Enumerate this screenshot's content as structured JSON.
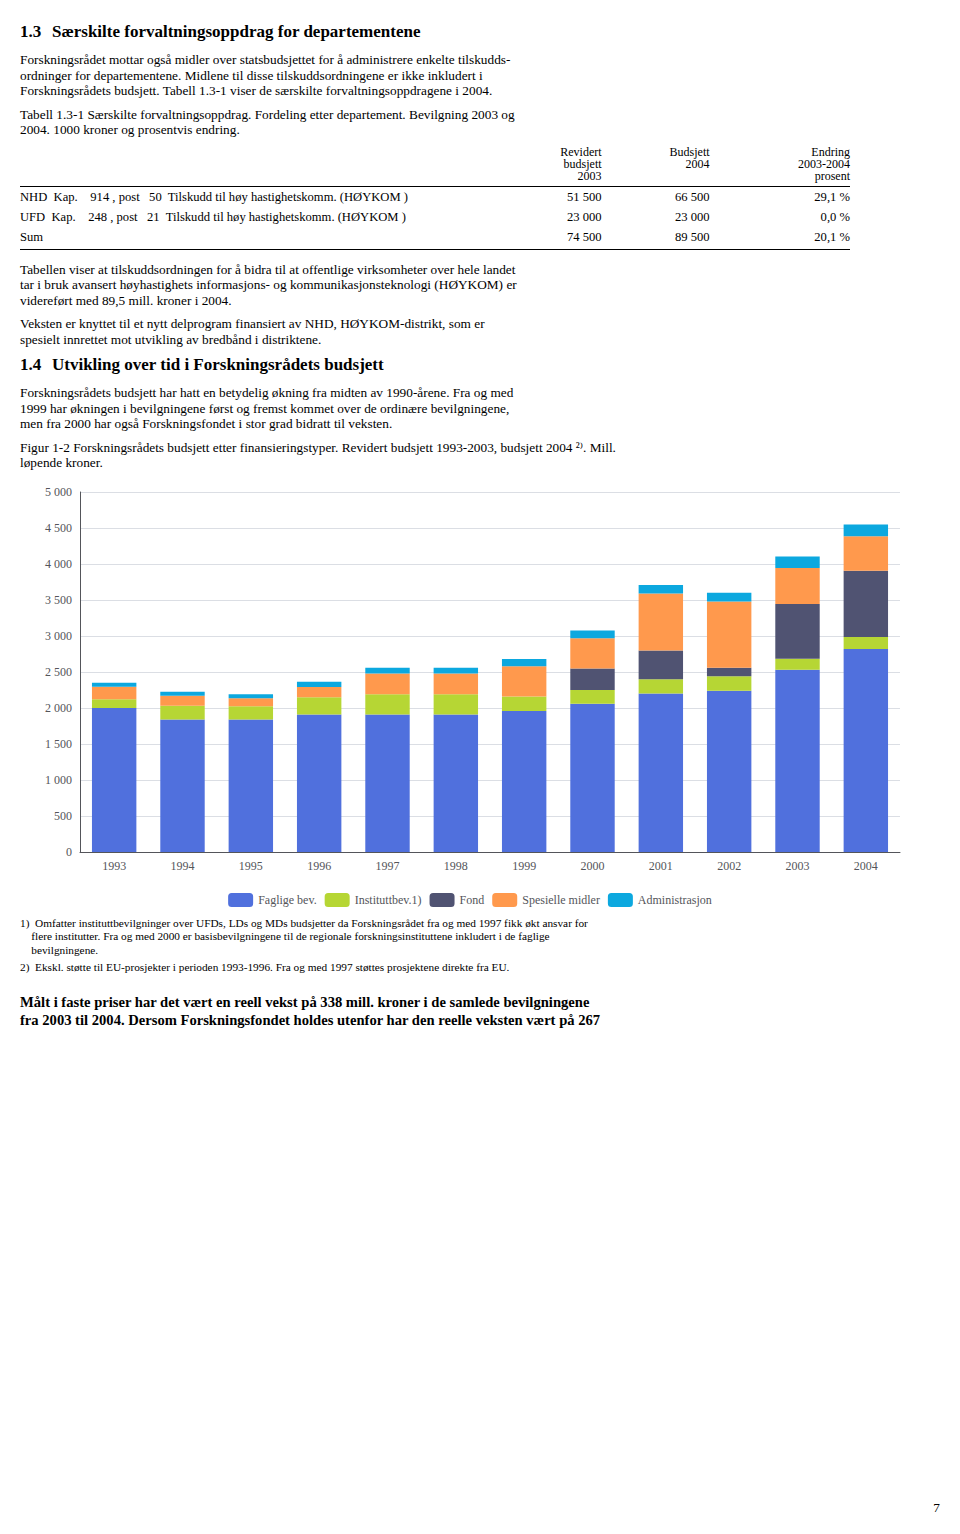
{
  "chart_data": {
    "type": "bar",
    "title": "Figur 1-2 Forskningsrådets budsjett etter finansieringstyper. Revidert budsjett 1993-2003, budsjett 2004 ²⁾. Mill. løpende kroner.",
    "categories": [
      "1993",
      "1994",
      "1995",
      "1996",
      "1997",
      "1998",
      "1999",
      "2000",
      "2001",
      "2002",
      "2003",
      "2004"
    ],
    "series": [
      {
        "name": "Faglige bev.",
        "values": [
          2000,
          1840,
          1840,
          1910,
          1910,
          1910,
          1960,
          2060,
          2200,
          2240,
          2530,
          2820
        ]
      },
      {
        "name": "Instituttbev.1)",
        "values": [
          120,
          190,
          185,
          240,
          280,
          280,
          200,
          190,
          200,
          200,
          155,
          165
        ]
      },
      {
        "name": "Fond",
        "values": [
          0,
          0,
          0,
          0,
          0,
          0,
          0,
          300,
          400,
          120,
          760,
          920
        ]
      },
      {
        "name": "Spesielle midler",
        "values": [
          175,
          140,
          110,
          140,
          290,
          290,
          420,
          420,
          790,
          920,
          500,
          480
        ]
      },
      {
        "name": "Administrasjon",
        "values": [
          55,
          55,
          55,
          75,
          80,
          80,
          100,
          105,
          120,
          120,
          160,
          165
        ]
      }
    ],
    "stacked": true,
    "ylim": [
      0,
      5000
    ],
    "yticks": [
      0,
      500,
      {
        "value": 1000,
        "label": "1 000"
      },
      {
        "value": 1500,
        "label": "1 500"
      },
      {
        "value": 2000,
        "label": "2 000"
      },
      {
        "value": 2500,
        "label": "2 500"
      },
      {
        "value": 3000,
        "label": "3 000"
      },
      {
        "value": 3500,
        "label": "3 500"
      },
      {
        "value": 4000,
        "label": "4 000"
      },
      {
        "value": 4500,
        "label": "4 500"
      },
      {
        "value": 5000,
        "label": "5 000"
      }
    ],
    "grid": true,
    "legend": "bottom"
  },
  "document": {
    "before_chart": [
      {
        "heading": [
          "1.3",
          "Særskilte forvaltningsoppdrag for departementene"
        ]
      },
      {
        "text": [
          "Forskningsrådet mottar også midler over statsbudsjettet for å administrere enkelte tilskudds-",
          "ordninger for departementene. Midlene til disse tilskuddsordningene er ikke inkludert i",
          "Forskningsrådets budsjett. Tabell 1.3-1 viser de særskilte forvaltningsoppdragene i 2004."
        ]
      },
      {
        "text": [
          "Tabell 1.3-1 Særskilte forvaltningsoppdrag. Fordeling etter departement. Bevilgning 2003 og",
          "2004. 1000 kroner og prosentvis endring."
        ]
      },
      {
        "table": {
          "columns": [
            [
              "Revidert",
              "budsjett",
              "2003"
            ],
            [
              "Budsjett",
              "2004"
            ],
            [
              "Endring",
              "2003-2004",
              "prosent"
            ]
          ],
          "rows": [
            [
              "NHD  Kap.    914 , post   50  Tilskudd til høy hastighetskomm. (HØYKOM )",
              "51 500",
              "66 500",
              "29,1 %"
            ],
            [
              "UFD  Kap.    248 , post   21  Tilskudd til høy hastighetskomm. (HØYKOM )",
              "23 000",
              "23 000",
              "0,0 %"
            ],
            [
              "Sum",
              "74 500",
              "89 500",
              "20,1 %"
            ]
          ]
        }
      },
      {
        "text": [
          "Tabellen viser at tilskuddsordningen for å bidra til at offentlige virksomheter over hele landet",
          "tar i bruk avansert høyhastighets informasjons- og kommunikasjonsteknologi (HØYKOM) er",
          "videreført med 89,5 mill. kroner i 2004."
        ]
      },
      {
        "text": [
          "Veksten er knyttet til et nytt delprogram finansiert av NHD, HØYKOM-distrikt, som er",
          "spesielt innrettet mot utvikling av bredbånd i distriktene."
        ]
      },
      {
        "heading": [
          "1.4",
          "Utvikling over tid i Forskningsrådets budsjett"
        ]
      },
      {
        "text": [
          "Forskningsrådets budsjett har hatt en betydelig økning fra midten av 1990-årene. Fra og med",
          "1999 har økningen i bevilgningene først og fremst kommet over de ordinære bevilgningene,",
          "men fra 2000 har også Forskningsfondet i stor grad bidratt til veksten."
        ]
      }
    ],
    "after_chart": [
      {
        "footnote": [
          "1)  Omfatter instituttbevilgninger over UFDs, LDs og MDs budsjetter da Forskningsrådet fra og med 1997 fikk økt ansvar for",
          "    flere institutter. Fra og med 2000 er basisbevilgningene til de regionale forskningsinstituttene inkludert i de faglige",
          "    bevilgningene."
        ]
      },
      {
        "footnote": [
          "2)  Ekskl. støtte til EU-prosjekter i perioden 1993-1996. Fra og med 1997 støttes prosjektene direkte fra EU."
        ]
      },
      {
        "bold": [
          "Målt i faste priser har det vært en reell vekst på 338 mill. kroner i de samlede bevilgningene",
          "fra 2003 til 2004. Dersom Forskningsfondet holdes utenfor har den reelle veksten vært på 267"
        ]
      }
    ],
    "page_number": 7
  }
}
